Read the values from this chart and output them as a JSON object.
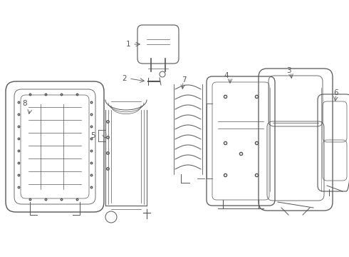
{
  "bg_color": "#ffffff",
  "line_color": "#555555",
  "label_color": "#333333",
  "lw": 0.8
}
